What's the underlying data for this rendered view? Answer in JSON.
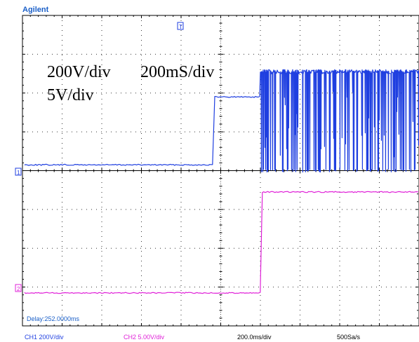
{
  "brand": "Agilent",
  "annotations": {
    "ch1_scale": "200V/div",
    "timebase": "200mS/div",
    "ch2_scale": "5V/div"
  },
  "delay_label": "Delay:252.0000ms",
  "status_bar": {
    "ch1": "CH1 200V/div",
    "ch2": "CH2 5.00V/div",
    "timebase": "200.0ms/div",
    "sample_rate": "500Sa/s"
  },
  "markers": {
    "ch1": "1",
    "ch2": "2",
    "trigger": "T"
  },
  "colors": {
    "ch1": "#1f3fe0",
    "ch2": "#e020d8",
    "grid": "#000000",
    "brand": "#1a5fc8",
    "delay": "#1a5fc8"
  },
  "chart_data": {
    "type": "line",
    "grid": true,
    "x_divisions": 10,
    "y_divisions": 8,
    "xlim": [
      0,
      10
    ],
    "ylim": [
      -4,
      4
    ],
    "series": [
      {
        "channel": "CH1",
        "color": "#1f3fe0",
        "segments": [
          {
            "type": "level",
            "x": [
              0.05,
              4.8
            ],
            "y": 0.15
          },
          {
            "type": "level",
            "x": [
              4.85,
              6.0
            ],
            "y": 1.9
          },
          {
            "type": "burst",
            "x": [
              6.0,
              10.0
            ],
            "high": 2.55,
            "low": 0.0
          }
        ]
      },
      {
        "channel": "CH2",
        "color": "#e020d8",
        "segments": [
          {
            "type": "level",
            "x": [
              0.05,
              6.0
            ],
            "y": -3.15
          },
          {
            "type": "level",
            "x": [
              6.05,
              10.0
            ],
            "y": -0.55
          }
        ]
      }
    ]
  }
}
